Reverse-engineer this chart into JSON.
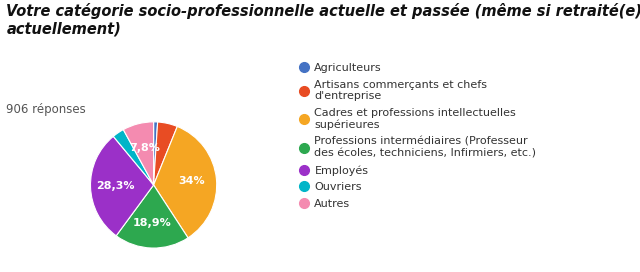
{
  "title": "Votre catégorie socio-professionnelle actuelle et passée (même si retraité(e)\nactuellement)",
  "subtitle": "906 réponses",
  "slices": [
    {
      "label": "Agriculteurs",
      "pct": 1.0,
      "color": "#4472C4"
    },
    {
      "label": "Artisans commerçants et chefs\nd'entreprise",
      "pct": 5.0,
      "color": "#E84C23"
    },
    {
      "label": "Cadres et professions intellectuelles\nsupérieures",
      "pct": 34.0,
      "color": "#F5A623"
    },
    {
      "label": "Professions intermédiaires (Professeur\ndes écoles, techniciens, Infirmiers, etc.)",
      "pct": 18.9,
      "color": "#2DA84F"
    },
    {
      "label": "Employés",
      "pct": 28.3,
      "color": "#9B30C8"
    },
    {
      "label": "Ouvriers",
      "pct": 3.0,
      "color": "#00B5C8"
    },
    {
      "label": "Autres",
      "pct": 7.8,
      "color": "#F48BB0"
    }
  ],
  "pct_labels": {
    "Agriculteurs": "",
    "Artisans commerçants et chefs\nd'entreprise": "",
    "Cadres et professions intellectuelles\nsupérieures": "34%",
    "Professions intermédiaires (Professeur\ndes écoles, techniciens, Infirmiers, etc.)": "18,9%",
    "Employés": "28,3%",
    "Ouvriers": "",
    "Autres": "7,8%"
  },
  "legend_labels": [
    "Agriculteurs",
    "Artisans commerçants et chefs\nd'entreprise",
    "Cadres et professions intellectuelles\nsupérieures",
    "Professions intermédiaires (Professeur\ndes écoles, techniciens, Infirmiers, etc.)",
    "Employés",
    "Ouvriers",
    "Autres"
  ],
  "bg_color": "#ffffff",
  "title_fontsize": 10.5,
  "subtitle_fontsize": 8.5,
  "legend_fontsize": 8,
  "pct_fontsize": 8
}
